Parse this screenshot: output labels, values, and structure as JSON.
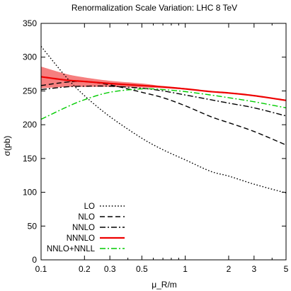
{
  "chart_data": {
    "type": "line",
    "title": "Renormalization Scale Variation: LHC 8 TeV",
    "xlabel": "μ_R/m",
    "ylabel": "σ(pb)",
    "xscale": "log",
    "xlim": [
      0.1,
      5
    ],
    "ylim": [
      0,
      350
    ],
    "grid": false,
    "legend_position": "bottom-left",
    "x_ticks": [
      {
        "value": 0.1,
        "label": "0.1"
      },
      {
        "value": 0.2,
        "label": "0.2"
      },
      {
        "value": 0.3,
        "label": "0.3"
      },
      {
        "value": 0.5,
        "label": "0.5"
      },
      {
        "value": 1,
        "label": "1"
      },
      {
        "value": 2,
        "label": "2"
      },
      {
        "value": 3,
        "label": "3"
      },
      {
        "value": 5,
        "label": "5"
      }
    ],
    "y_ticks": [
      0,
      50,
      100,
      150,
      200,
      250,
      300,
      350
    ],
    "series": [
      {
        "name": "LO",
        "color": "#000000",
        "dash": "dotted",
        "x": [
          0.1,
          0.15,
          0.2,
          0.3,
          0.5,
          0.7,
          1,
          1.5,
          2,
          3,
          5
        ],
        "y": [
          316,
          270,
          243,
          212,
          180,
          163,
          148,
          131,
          124,
          112,
          99
        ]
      },
      {
        "name": "NLO",
        "color": "#000000",
        "dash": "dashed",
        "x": [
          0.1,
          0.15,
          0.2,
          0.3,
          0.5,
          0.7,
          1,
          1.5,
          2,
          3,
          5
        ],
        "y": [
          258,
          263,
          264,
          259,
          248,
          240,
          228,
          212,
          203,
          190,
          170
        ]
      },
      {
        "name": "NNLO",
        "color": "#000000",
        "dash": "dashdot",
        "x": [
          0.1,
          0.15,
          0.2,
          0.3,
          0.5,
          0.7,
          1,
          1.5,
          2,
          3,
          5
        ],
        "y": [
          252,
          256,
          257,
          257,
          254,
          250,
          244,
          237,
          232,
          225,
          213
        ]
      },
      {
        "name": "NNNLO",
        "color": "#ee0000",
        "dash": "solid",
        "x": [
          0.1,
          0.15,
          0.2,
          0.3,
          0.5,
          0.7,
          1,
          1.5,
          2,
          3,
          5
        ],
        "y": [
          271,
          266,
          264,
          261,
          258,
          256,
          253,
          249,
          247,
          243,
          236
        ]
      },
      {
        "name": "NNLO+NNLL",
        "color": "#00cc00",
        "dash": "dashdot",
        "x": [
          0.1,
          0.15,
          0.2,
          0.3,
          0.5,
          0.7,
          1,
          1.5,
          2,
          3,
          5
        ],
        "y": [
          208,
          226,
          237,
          248,
          253,
          252,
          249,
          244,
          240,
          234,
          225
        ]
      }
    ],
    "band": {
      "color": "#ee0000",
      "opacity": 0.5,
      "x": [
        0.1,
        0.15,
        0.2,
        0.3,
        0.5,
        0.7,
        1,
        1.5,
        2,
        3,
        5
      ],
      "upper": [
        286,
        275,
        270,
        265,
        261,
        257,
        254,
        249,
        247,
        243,
        236
      ],
      "lower": [
        254,
        256,
        256,
        256,
        255,
        254,
        252,
        249,
        247,
        243,
        236
      ]
    }
  }
}
